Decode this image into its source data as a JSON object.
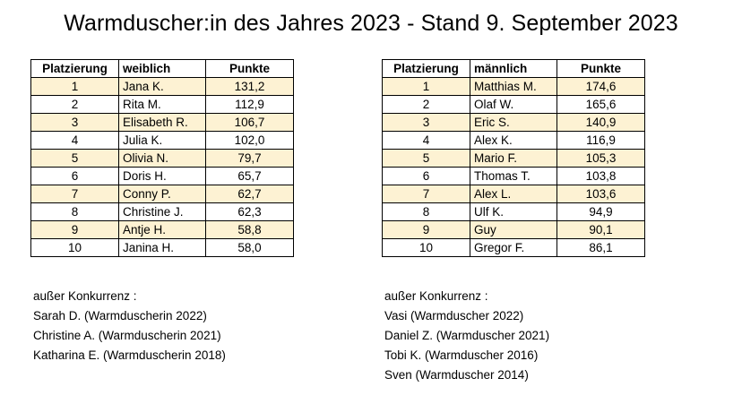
{
  "title": "Warmduscher:in des Jahres 2023 - Stand 9. September 2023",
  "female": {
    "headers": [
      "Platzierung",
      "weiblich",
      "Punkte"
    ],
    "rows": [
      {
        "rank": "1",
        "name": "Jana K.",
        "points": "131,2"
      },
      {
        "rank": "2",
        "name": "Rita M.",
        "points": "112,9"
      },
      {
        "rank": "3",
        "name": "Elisabeth R.",
        "points": "106,7"
      },
      {
        "rank": "4",
        "name": "Julia K.",
        "points": "102,0"
      },
      {
        "rank": "5",
        "name": "Olivia N.",
        "points": "79,7"
      },
      {
        "rank": "6",
        "name": "Doris H.",
        "points": "65,7"
      },
      {
        "rank": "7",
        "name": "Conny P.",
        "points": "62,7"
      },
      {
        "rank": "8",
        "name": "Christine J.",
        "points": "62,3"
      },
      {
        "rank": "9",
        "name": "Antje H.",
        "points": "58,8"
      },
      {
        "rank": "10",
        "name": "Janina H.",
        "points": "58,0"
      }
    ],
    "outside_heading": "außer Konkurrenz :",
    "outside": [
      "Sarah D. (Warmduscherin 2022)",
      "Christine A. (Warmduscherin 2021)",
      "Katharina E. (Warmduscherin 2018)"
    ]
  },
  "male": {
    "headers": [
      "Platzierung",
      "männlich",
      "Punkte"
    ],
    "rows": [
      {
        "rank": "1",
        "name": "Matthias M.",
        "points": "174,6"
      },
      {
        "rank": "2",
        "name": "Olaf W.",
        "points": "165,6"
      },
      {
        "rank": "3",
        "name": "Eric S.",
        "points": "140,9"
      },
      {
        "rank": "4",
        "name": "Alex K.",
        "points": "116,9"
      },
      {
        "rank": "5",
        "name": "Mario F.",
        "points": "105,3"
      },
      {
        "rank": "6",
        "name": "Thomas T.",
        "points": "103,8"
      },
      {
        "rank": "7",
        "name": "Alex L.",
        "points": "103,6"
      },
      {
        "rank": "8",
        "name": "Ulf K.",
        "points": "94,9"
      },
      {
        "rank": "9",
        "name": "Guy",
        "points": "90,1"
      },
      {
        "rank": "10",
        "name": "Gregor F.",
        "points": "86,1"
      }
    ],
    "outside_heading": "außer Konkurrenz :",
    "outside": [
      "Vasi (Warmduscher 2022)",
      "Daniel Z. (Warmduscher 2021)",
      "Tobi K. (Warmduscher 2016)",
      "Sven (Warmduscher 2014)"
    ]
  },
  "colors": {
    "row_highlight": "#fdf2d3",
    "row_plain": "#ffffff",
    "border": "#000000"
  }
}
